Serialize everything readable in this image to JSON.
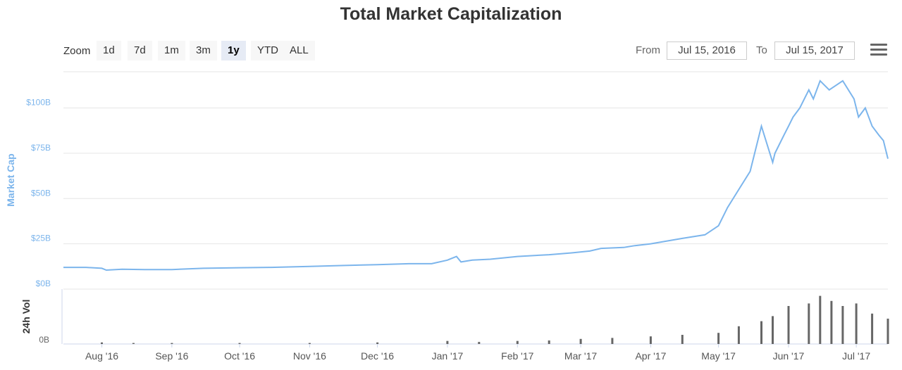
{
  "title": "Total Market Capitalization",
  "toolbar": {
    "zoom_label": "Zoom",
    "zoom_buttons": [
      "1d",
      "7d",
      "1m",
      "3m",
      "1y",
      "YTD",
      "ALL"
    ],
    "active_zoom": "1y",
    "from_label": "From",
    "from_value": "Jul 15, 2016",
    "to_label": "To",
    "to_value": "Jul 15, 2017",
    "menu_icon": "hamburger-menu-icon"
  },
  "colors": {
    "line": "#7cb5ec",
    "axis_label": "#7cb5ec",
    "volume": "#666666",
    "grid": "#e6e6e6"
  },
  "chart_data": [
    {
      "type": "line",
      "ylabel": "Market Cap",
      "ylim": [
        0,
        120
      ],
      "y_ticks": [
        0,
        25,
        50,
        75,
        100
      ],
      "y_tick_labels": [
        "$0B",
        "$25B",
        "$50B",
        "$75B",
        "$100B"
      ],
      "x_tick_labels": [
        "Aug '16",
        "Sep '16",
        "Oct '16",
        "Nov '16",
        "Dec '16",
        "Jan '17",
        "Feb '17",
        "Mar '17",
        "Apr '17",
        "May '17",
        "Jun '17",
        "Jul '17"
      ],
      "x_range": [
        "2016-07-15",
        "2017-07-15"
      ],
      "grid": true,
      "series": [
        {
          "x": [
            "2016-07-15",
            "2016-07-25",
            "2016-08-01",
            "2016-08-03",
            "2016-08-10",
            "2016-08-20",
            "2016-09-01",
            "2016-09-15",
            "2016-10-01",
            "2016-10-15",
            "2016-11-01",
            "2016-11-15",
            "2016-12-01",
            "2016-12-15",
            "2016-12-25",
            "2017-01-01",
            "2017-01-05",
            "2017-01-07",
            "2017-01-12",
            "2017-01-20",
            "2017-02-01",
            "2017-02-15",
            "2017-02-25",
            "2017-03-05",
            "2017-03-10",
            "2017-03-20",
            "2017-03-25",
            "2017-04-01",
            "2017-04-15",
            "2017-04-25",
            "2017-05-01",
            "2017-05-05",
            "2017-05-10",
            "2017-05-15",
            "2017-05-20",
            "2017-05-25",
            "2017-05-26",
            "2017-05-30",
            "2017-06-01",
            "2017-06-03",
            "2017-06-06",
            "2017-06-10",
            "2017-06-12",
            "2017-06-15",
            "2017-06-19",
            "2017-06-25",
            "2017-06-30",
            "2017-07-02",
            "2017-07-05",
            "2017-07-08",
            "2017-07-11",
            "2017-07-13",
            "2017-07-15"
          ],
          "values": [
            12,
            12,
            11.5,
            10.5,
            11,
            10.8,
            10.8,
            11.5,
            11.8,
            12,
            12.5,
            13,
            13.5,
            14,
            14,
            16,
            18,
            15,
            16,
            16.5,
            18,
            19,
            20,
            21,
            22.5,
            23,
            24,
            25,
            28,
            30,
            35,
            45,
            55,
            65,
            90,
            70,
            75,
            85,
            90,
            95,
            100,
            110,
            105,
            115,
            110,
            115,
            105,
            95,
            100,
            90,
            85,
            82,
            72
          ]
        }
      ]
    },
    {
      "type": "bar",
      "ylabel": "24h Vol",
      "y_tick_labels": [
        "0B"
      ],
      "note": "relative daily volume levels (0-1)",
      "x": [
        "2016-08-01",
        "2016-08-15",
        "2016-09-01",
        "2016-10-01",
        "2016-11-01",
        "2016-12-01",
        "2017-01-01",
        "2017-01-15",
        "2017-02-01",
        "2017-02-15",
        "2017-03-01",
        "2017-03-15",
        "2017-04-01",
        "2017-04-15",
        "2017-05-01",
        "2017-05-10",
        "2017-05-20",
        "2017-05-25",
        "2017-06-01",
        "2017-06-10",
        "2017-06-15",
        "2017-06-20",
        "2017-06-25",
        "2017-07-01",
        "2017-07-08",
        "2017-07-15"
      ],
      "values": [
        0.03,
        0.02,
        0.02,
        0.02,
        0.02,
        0.03,
        0.06,
        0.04,
        0.06,
        0.07,
        0.1,
        0.12,
        0.15,
        0.18,
        0.22,
        0.35,
        0.45,
        0.55,
        0.75,
        0.8,
        0.95,
        0.85,
        0.75,
        0.8,
        0.6,
        0.5
      ]
    }
  ]
}
